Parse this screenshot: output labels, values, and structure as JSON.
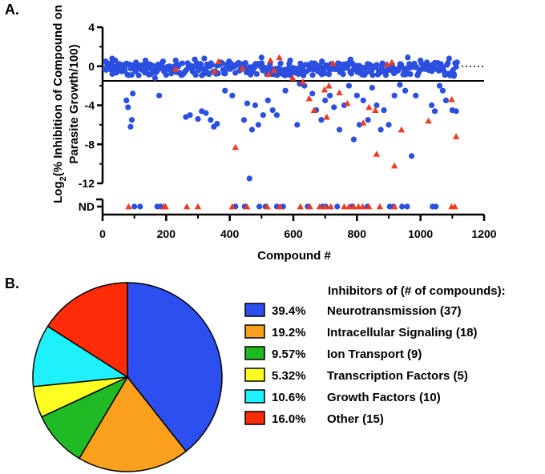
{
  "chart_data": [
    {
      "panel_label": "A.",
      "type": "scatter",
      "xlabel": "Compound #",
      "ylabel_prefix": "Log",
      "ylabel_sub": "2",
      "ylabel_line1_rest": "(% Inhibition of Compound on",
      "ylabel_line2": "Parasite Growth/100)",
      "xlim": [
        0,
        1200
      ],
      "ylim": [
        -12,
        4
      ],
      "x_ticks": [
        "0",
        "200",
        "400",
        "600",
        "800",
        "1000",
        "1200"
      ],
      "y_ticks": [
        "4",
        "0",
        "-4",
        "-8",
        "-12"
      ],
      "nd_label": "ND",
      "threshold_y": -1.5,
      "reference_y": 0,
      "series": [
        {
          "name": "Compounds",
          "marker": "circle",
          "color": "#2b4fe0",
          "points": [
            [
              10,
              0.5
            ],
            [
              25,
              0.3
            ],
            [
              40,
              0.6
            ],
            [
              55,
              0.2
            ],
            [
              70,
              -0.5
            ],
            [
              75,
              -3.5
            ],
            [
              80,
              -4.2
            ],
            [
              88,
              -6.2
            ],
            [
              92,
              -5.5
            ],
            [
              95,
              -2.8
            ],
            [
              105,
              0.4
            ],
            [
              120,
              0.1
            ],
            [
              135,
              0.6
            ],
            [
              150,
              0.2
            ],
            [
              165,
              -1.2
            ],
            [
              178,
              -3.0
            ],
            [
              190,
              0.5
            ],
            [
              210,
              0.0
            ],
            [
              230,
              0.6
            ],
            [
              250,
              0.3
            ],
            [
              262,
              -5.2
            ],
            [
              275,
              -5.0
            ],
            [
              290,
              0.7
            ],
            [
              300,
              -5.4
            ],
            [
              312,
              -4.6
            ],
            [
              325,
              -4.8
            ],
            [
              340,
              -5.5
            ],
            [
              350,
              -6.2
            ],
            [
              360,
              -5.9
            ],
            [
              372,
              0.4
            ],
            [
              385,
              -2.5
            ],
            [
              398,
              0.5
            ],
            [
              408,
              -3.0
            ],
            [
              430,
              0.2
            ],
            [
              445,
              -5.5
            ],
            [
              455,
              -3.8
            ],
            [
              462,
              -11.5
            ],
            [
              470,
              -6.5
            ],
            [
              480,
              -4.0
            ],
            [
              490,
              -6.0
            ],
            [
              505,
              -5.0
            ],
            [
              520,
              -3.5
            ],
            [
              535,
              -4.5
            ],
            [
              548,
              -5.0
            ],
            [
              560,
              0.3
            ],
            [
              575,
              -2.5
            ],
            [
              590,
              0.6
            ],
            [
              612,
              -6.0
            ],
            [
              620,
              -1.8
            ],
            [
              635,
              -2.0
            ],
            [
              660,
              -2.8
            ],
            [
              672,
              -4.5
            ],
            [
              688,
              -5.5
            ],
            [
              700,
              -3.5
            ],
            [
              715,
              -3.0
            ],
            [
              728,
              -4.2
            ],
            [
              745,
              -6.5
            ],
            [
              760,
              -4.0
            ],
            [
              775,
              -2.0
            ],
            [
              790,
              -7.5
            ],
            [
              800,
              -3.0
            ],
            [
              808,
              -6.0
            ],
            [
              820,
              -3.5
            ],
            [
              835,
              -5.5
            ],
            [
              848,
              -2.2
            ],
            [
              862,
              -4.0
            ],
            [
              875,
              -6.5
            ],
            [
              885,
              -4.5
            ],
            [
              900,
              -6.0
            ],
            [
              918,
              -3.0
            ],
            [
              935,
              -1.9
            ],
            [
              952,
              -2.5
            ],
            [
              972,
              -9.2
            ],
            [
              985,
              -3.0
            ],
            [
              1000,
              0.6
            ],
            [
              1020,
              0.4
            ],
            [
              1035,
              -4.0
            ],
            [
              1045,
              -4.6
            ],
            [
              1060,
              -2.0
            ],
            [
              1070,
              -2.5
            ],
            [
              1080,
              -3.5
            ],
            [
              1090,
              0.8
            ],
            [
              1100,
              -4.5
            ],
            [
              1112,
              -4.6
            ],
            [
              1115,
              0.4
            ],
            [
              30,
              0.8
            ],
            [
              140,
              -0.3
            ],
            [
              320,
              0.8
            ],
            [
              500,
              0.9
            ],
            [
              690,
              0.5
            ],
            [
              780,
              0.7
            ],
            [
              880,
              0.3
            ],
            [
              960,
              0.9
            ],
            [
              1040,
              0.2
            ],
            [
              1105,
              -1.0
            ]
          ]
        },
        {
          "name": "Compounds (triangle)",
          "marker": "triangle",
          "color": "#ee3b22",
          "points": [
            [
              230,
              -0.3
            ],
            [
              352,
              -0.5
            ],
            [
              365,
              0.5
            ],
            [
              418,
              -8.3
            ],
            [
              440,
              -0.2
            ],
            [
              522,
              -0.8
            ],
            [
              528,
              0.6
            ],
            [
              540,
              -0.4
            ],
            [
              556,
              0.9
            ],
            [
              598,
              -1.2
            ],
            [
              630,
              -1.6
            ],
            [
              665,
              -4.5
            ],
            [
              698,
              -2.4
            ],
            [
              705,
              -5.2
            ],
            [
              712,
              -2.0
            ],
            [
              725,
              0.3
            ],
            [
              770,
              -3.8
            ],
            [
              820,
              -5.8
            ],
            [
              838,
              -4.2
            ],
            [
              858,
              -4.5
            ],
            [
              862,
              -9.0
            ],
            [
              895,
              0.2
            ],
            [
              910,
              0.4
            ],
            [
              918,
              -10.2
            ],
            [
              940,
              -6.5
            ],
            [
              1025,
              -5.6
            ],
            [
              1098,
              -3.4
            ],
            [
              1112,
              -7.2
            ],
            [
              650,
              -3.3
            ],
            [
              745,
              -2.7
            ]
          ]
        },
        {
          "name": "ND circles",
          "marker": "circle",
          "nd": true,
          "color": "#2b4fe0",
          "x": [
            100,
            118,
            172,
            183,
            418,
            447,
            493,
            512,
            548,
            568,
            645,
            692,
            702,
            738,
            785,
            833,
            903,
            915,
            942,
            958,
            1038,
            1048
          ]
        },
        {
          "name": "ND triangles",
          "marker": "triangle",
          "nd": true,
          "color": "#ee3b22",
          "x": [
            82,
            193,
            198,
            265,
            300,
            408,
            454,
            518,
            558,
            622,
            652,
            683,
            700,
            718,
            760,
            775,
            790,
            805,
            818,
            838,
            872,
            918,
            1098,
            1108
          ]
        }
      ]
    },
    {
      "panel_label": "B.",
      "type": "pie",
      "legend_title": "Inhibitors of (# of compounds):",
      "slices": [
        {
          "label": "Neurotransmission (37)",
          "percent_label": "39.4%",
          "value": 37,
          "color": "#2e4ff0"
        },
        {
          "label": "Intracellular Signaling (18)",
          "percent_label": "19.2%",
          "value": 18,
          "color": "#fba01c"
        },
        {
          "label": "Ion Transport (9)",
          "percent_label": "9.57%",
          "value": 9,
          "color": "#1fba24"
        },
        {
          "label": "Transcription Factors (5)",
          "percent_label": "5.32%",
          "value": 5,
          "color": "#fefe22"
        },
        {
          "label": "Growth Factors (10)",
          "percent_label": "10.6%",
          "value": 10,
          "color": "#1ff1fa"
        },
        {
          "label": "Other (15)",
          "percent_label": "16.0%",
          "value": 15,
          "color": "#fe2c08"
        }
      ]
    }
  ]
}
